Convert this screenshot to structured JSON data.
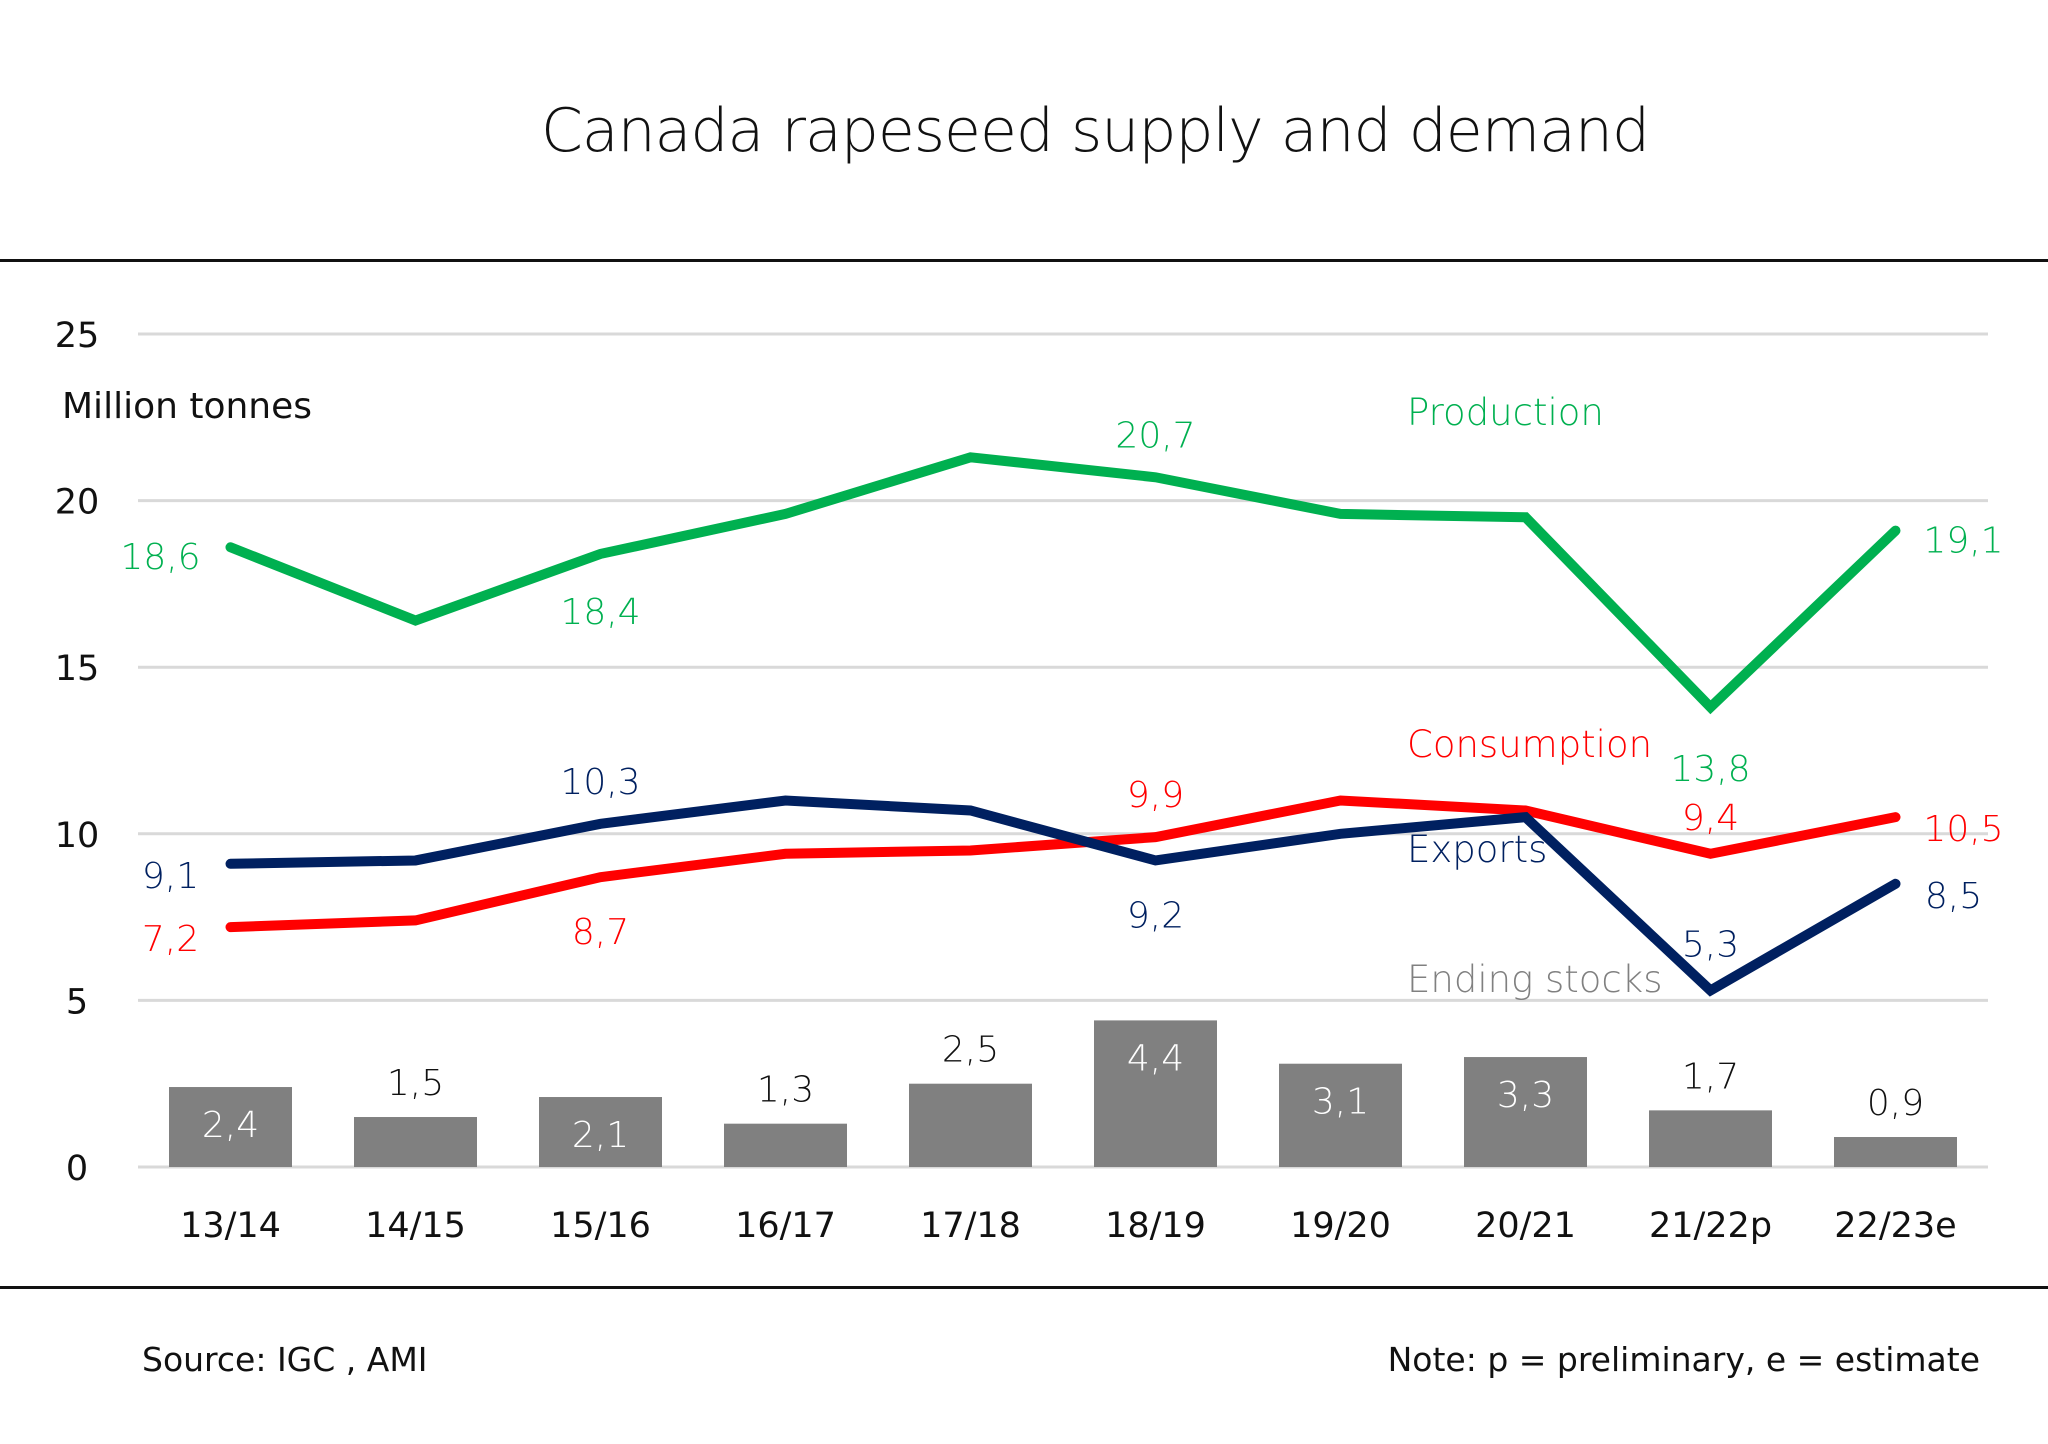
{
  "page": {
    "title": "Canada rapeseed supply and demand",
    "source": "Source: IGC , AMI",
    "note": "Note: p = preliminary, e = estimate"
  },
  "chart_data": {
    "type": "line",
    "title": "Canada rapeseed supply and demand",
    "ylabel": "Million tonnes",
    "xlabel": "",
    "ylim": [
      0,
      25
    ],
    "yticks": [
      0,
      5,
      10,
      15,
      20,
      25
    ],
    "grid": true,
    "categories": [
      "13/14",
      "14/15",
      "15/16",
      "16/17",
      "17/18",
      "18/19",
      "19/20",
      "20/21",
      "21/22p",
      "22/23e"
    ],
    "series": [
      {
        "name": "Production",
        "type": "line",
        "color": "#00b050",
        "values": [
          18.6,
          16.4,
          18.4,
          19.6,
          21.3,
          20.7,
          19.6,
          19.5,
          13.8,
          19.1
        ],
        "labels": [
          "18,6",
          null,
          "18,4",
          null,
          null,
          "20,7",
          null,
          null,
          "13,8",
          "19,1"
        ]
      },
      {
        "name": "Consumption",
        "type": "line",
        "color": "#ff0000",
        "values": [
          7.2,
          7.4,
          8.7,
          9.4,
          9.5,
          9.9,
          11.0,
          10.7,
          9.4,
          10.5
        ],
        "labels": [
          "7,2",
          null,
          "8,7",
          null,
          null,
          "9,9",
          null,
          null,
          "9,4",
          "10,5"
        ]
      },
      {
        "name": "Exports",
        "type": "line",
        "color": "#002060",
        "values": [
          9.1,
          9.2,
          10.3,
          11.0,
          10.7,
          9.2,
          10.0,
          10.5,
          5.3,
          8.5
        ],
        "labels": [
          "9,1",
          null,
          "10,3",
          null,
          null,
          "9,2",
          null,
          null,
          "5,3",
          "8,5"
        ]
      },
      {
        "name": "Ending stocks",
        "type": "bar",
        "color": "#808080",
        "label_color": "#808080",
        "values": [
          2.4,
          1.5,
          2.1,
          1.3,
          2.5,
          4.4,
          3.1,
          3.3,
          1.7,
          0.9
        ],
        "labels": [
          "2,4",
          "1,5",
          "2,1",
          "1,3",
          "2,5",
          "4,4",
          "3,1",
          "3,3",
          "1,7",
          "0,9"
        ],
        "label_inside": [
          true,
          false,
          true,
          false,
          false,
          true,
          true,
          true,
          false,
          false
        ]
      }
    ],
    "legend": "inline-labels"
  }
}
